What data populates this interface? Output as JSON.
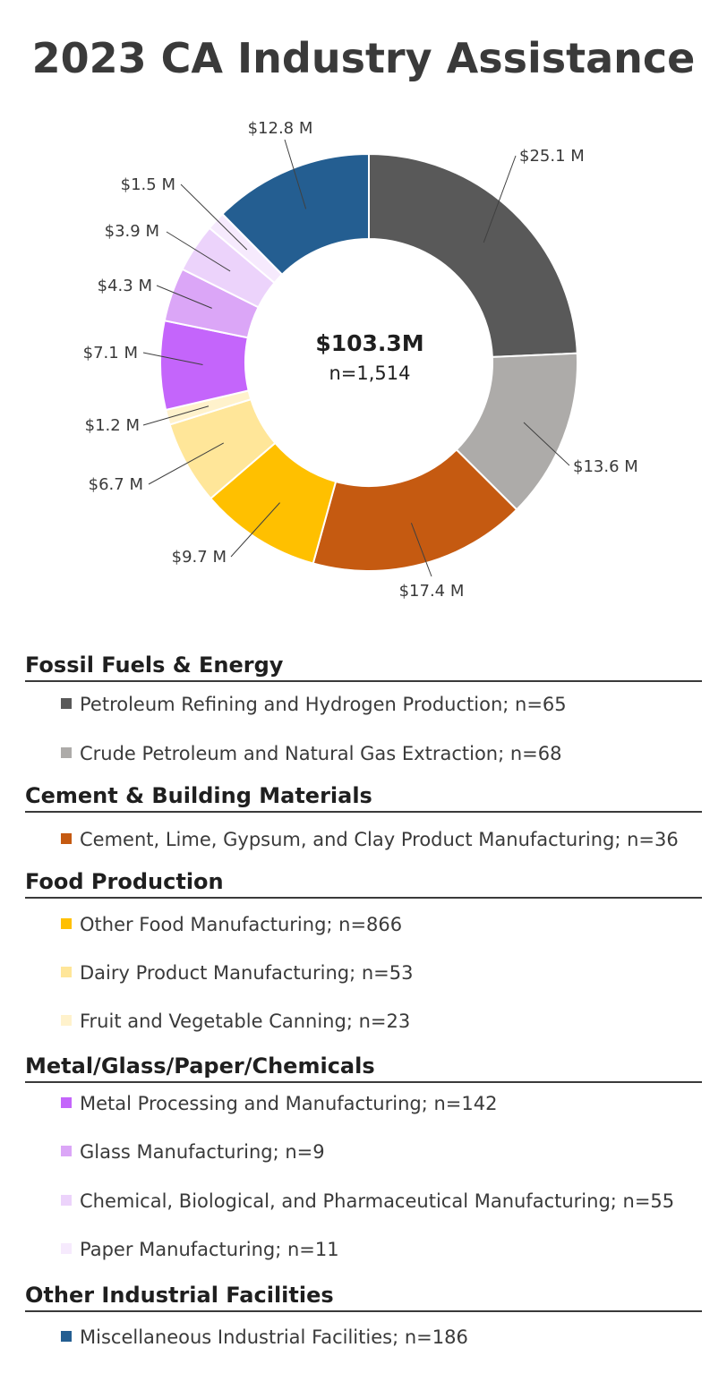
{
  "chart_data": {
    "type": "pie",
    "title": "2023 CA Industry Assistance",
    "center": {
      "total": "$103.3M",
      "count": "n=1,514"
    },
    "slices": [
      {
        "key": "petroleum_refining",
        "value": 25.1,
        "label": "$25.1 M",
        "color": "#595959"
      },
      {
        "key": "crude_extraction",
        "value": 13.6,
        "label": "$13.6 M",
        "color": "#ADABA9"
      },
      {
        "key": "cement",
        "value": 17.4,
        "label": "$17.4 M",
        "color": "#C55A11"
      },
      {
        "key": "other_food",
        "value": 9.7,
        "label": "$9.7 M",
        "color": "#FFC000"
      },
      {
        "key": "dairy",
        "value": 6.7,
        "label": "$6.7 M",
        "color": "#FFE699"
      },
      {
        "key": "fruit_veg",
        "value": 1.2,
        "label": "$1.2 M",
        "color": "#FFF2CC"
      },
      {
        "key": "metal",
        "value": 7.1,
        "label": "$7.1 M",
        "color": "#C465FB"
      },
      {
        "key": "glass",
        "value": 4.3,
        "label": "$4.3 M",
        "color": "#DBA6F7"
      },
      {
        "key": "chemical",
        "value": 3.9,
        "label": "$3.9 M",
        "color": "#ECD3FB"
      },
      {
        "key": "paper",
        "value": 1.5,
        "label": "$1.5 M",
        "color": "#F6EAFD"
      },
      {
        "key": "misc",
        "value": 12.8,
        "label": "$12.8 M",
        "color": "#245E91"
      }
    ]
  },
  "legend": {
    "groups": [
      {
        "heading": "Fossil Fuels & Energy",
        "items": [
          {
            "text": "Petroleum Refining and Hydrogen Production; n=65",
            "color": "#595959"
          },
          {
            "text": "Crude Petroleum and Natural Gas Extraction; n=68",
            "color": "#ADABA9"
          }
        ]
      },
      {
        "heading": "Cement & Building Materials",
        "items": [
          {
            "text": "Cement, Lime, Gypsum, and Clay Product Manufacturing; n=36",
            "color": "#C55A11"
          }
        ]
      },
      {
        "heading": "Food Production",
        "items": [
          {
            "text": "Other Food Manufacturing; n=866",
            "color": "#FFC000"
          },
          {
            "text": "Dairy Product Manufacturing; n=53",
            "color": "#FFE699"
          },
          {
            "text": "Fruit and Vegetable Canning; n=23",
            "color": "#FFF2CC"
          }
        ]
      },
      {
        "heading": "Metal/Glass/Paper/Chemicals",
        "items": [
          {
            "text": "Metal Processing and Manufacturing; n=142",
            "color": "#C465FB"
          },
          {
            "text": "Glass Manufacturing; n=9",
            "color": "#DBA6F7"
          },
          {
            "text": "Chemical, Biological, and Pharmaceutical Manufacturing; n=55",
            "color": "#ECD3FB"
          },
          {
            "text": "Paper Manufacturing; n=11",
            "color": "#F6EAFD"
          }
        ]
      },
      {
        "heading": "Other Industrial Facilities",
        "items": [
          {
            "text": "Miscellaneous Industrial Facilities; n=186",
            "color": "#245E91"
          }
        ]
      }
    ]
  }
}
